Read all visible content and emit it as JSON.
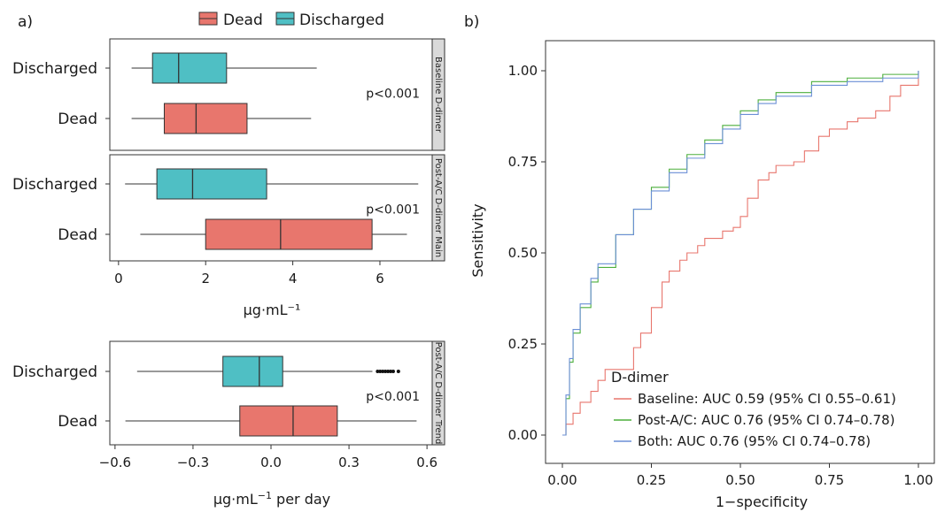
{
  "panel_a": {
    "label": "a)",
    "legend": {
      "items": [
        {
          "name": "Dead",
          "color": "#E8766D"
        },
        {
          "name": "Discharged",
          "color": "#4FBFC4"
        }
      ]
    },
    "top_xlabel": "μg·mL⁻¹",
    "bottom_xlabel_main": "μg·mL",
    "bottom_xlabel_sup": "−1",
    "bottom_xlabel_tail": " per day",
    "top_xticks": [
      "0",
      "2",
      "4",
      "6"
    ],
    "bottom_xticks": [
      "−0.6",
      "−0.3",
      "0.0",
      "0.3",
      "0.6"
    ]
  },
  "panel_b": {
    "label": "b)",
    "xlabel": "1−specificity",
    "ylabel": "Sensitivity",
    "xticks": [
      "0.00",
      "0.25",
      "0.50",
      "0.75",
      "1.00"
    ],
    "yticks": [
      "0.00",
      "0.25",
      "0.50",
      "0.75",
      "1.00"
    ],
    "legend_title": "D-dimer",
    "legend_items": [
      {
        "label": "Baseline: AUC 0.59 (95% CI 0.55–0.61)",
        "color": "#E8766D"
      },
      {
        "label": "Post-A/C: AUC 0.76 (95% CI 0.74–0.78)",
        "color": "#4CAF3C"
      },
      {
        "label": "Both: AUC 0.76 (95% CI 0.74–0.78)",
        "color": "#6B8FD6"
      }
    ]
  },
  "chart_data": [
    {
      "type": "boxplot",
      "panel": "a",
      "facet": "Baseline D-dimer",
      "xlim": [
        -0.2,
        7.2
      ],
      "categories": [
        "Discharged",
        "Dead"
      ],
      "boxes": [
        {
          "group": "Discharged",
          "color": "#4FBFC4",
          "whisker_low": 0.3,
          "q1": 0.78,
          "median": 1.38,
          "q3": 2.48,
          "whisker_high": 4.55
        },
        {
          "group": "Dead",
          "color": "#E8766D",
          "whisker_low": 0.3,
          "q1": 1.05,
          "median": 1.78,
          "q3": 2.95,
          "whisker_high": 4.42
        }
      ],
      "annotation": "p<0.001"
    },
    {
      "type": "boxplot",
      "panel": "a",
      "facet": "Post-A/C D-dimer Main",
      "xlim": [
        -0.2,
        7.2
      ],
      "categories": [
        "Discharged",
        "Dead"
      ],
      "boxes": [
        {
          "group": "Discharged",
          "color": "#4FBFC4",
          "whisker_low": 0.15,
          "q1": 0.88,
          "median": 1.7,
          "q3": 3.4,
          "whisker_high": 6.88
        },
        {
          "group": "Dead",
          "color": "#E8766D",
          "whisker_low": 0.5,
          "q1": 2.0,
          "median": 3.72,
          "q3": 5.82,
          "whisker_high": 6.62
        }
      ],
      "annotation": "p<0.001"
    },
    {
      "type": "boxplot",
      "panel": "a",
      "facet": "Post-A/C D-dimer Trend",
      "xlim": [
        -0.62,
        0.62
      ],
      "categories": [
        "Discharged",
        "Dead"
      ],
      "boxes": [
        {
          "group": "Discharged",
          "color": "#4FBFC4",
          "whisker_low": -0.515,
          "q1": -0.185,
          "median": -0.045,
          "q3": 0.045,
          "whisker_high": 0.39,
          "outliers": [
            0.41,
            0.42,
            0.43,
            0.44,
            0.45,
            0.46,
            0.47,
            0.49
          ]
        },
        {
          "group": "Dead",
          "color": "#E8766D",
          "whisker_low": -0.56,
          "q1": -0.12,
          "median": 0.085,
          "q3": 0.255,
          "whisker_high": 0.56
        }
      ],
      "annotation": "p<0.001"
    },
    {
      "type": "line",
      "panel": "b",
      "xlim": [
        0,
        1
      ],
      "ylim": [
        0,
        1
      ],
      "series": [
        {
          "name": "Baseline: AUC 0.59 (95% CI 0.55–0.61)",
          "color": "#E8766D",
          "x": [
            0.0,
            0.01,
            0.03,
            0.05,
            0.08,
            0.1,
            0.12,
            0.15,
            0.2,
            0.22,
            0.25,
            0.28,
            0.3,
            0.33,
            0.35,
            0.38,
            0.4,
            0.45,
            0.48,
            0.5,
            0.52,
            0.55,
            0.58,
            0.6,
            0.65,
            0.68,
            0.72,
            0.75,
            0.8,
            0.83,
            0.88,
            0.92,
            0.95,
            1.0
          ],
          "y": [
            0.0,
            0.03,
            0.06,
            0.09,
            0.12,
            0.15,
            0.18,
            0.18,
            0.24,
            0.28,
            0.35,
            0.42,
            0.45,
            0.48,
            0.5,
            0.52,
            0.54,
            0.56,
            0.57,
            0.6,
            0.65,
            0.7,
            0.72,
            0.74,
            0.75,
            0.78,
            0.82,
            0.84,
            0.86,
            0.87,
            0.89,
            0.93,
            0.96,
            1.0
          ]
        },
        {
          "name": "Post-A/C: AUC 0.76 (95% CI 0.74–0.78)",
          "color": "#4CAF3C",
          "x": [
            0.0,
            0.01,
            0.02,
            0.03,
            0.05,
            0.08,
            0.1,
            0.15,
            0.2,
            0.25,
            0.3,
            0.35,
            0.4,
            0.45,
            0.5,
            0.55,
            0.6,
            0.7,
            0.8,
            0.9,
            1.0
          ],
          "y": [
            0.0,
            0.1,
            0.2,
            0.28,
            0.35,
            0.42,
            0.46,
            0.55,
            0.62,
            0.68,
            0.73,
            0.77,
            0.81,
            0.85,
            0.89,
            0.92,
            0.94,
            0.97,
            0.98,
            0.99,
            1.0
          ]
        },
        {
          "name": "Both: AUC 0.76 (95% CI 0.74–0.78)",
          "color": "#6B8FD6",
          "x": [
            0.0,
            0.01,
            0.02,
            0.03,
            0.05,
            0.08,
            0.1,
            0.15,
            0.2,
            0.25,
            0.3,
            0.35,
            0.4,
            0.45,
            0.5,
            0.55,
            0.6,
            0.7,
            0.8,
            0.9,
            1.0
          ],
          "y": [
            0.0,
            0.11,
            0.21,
            0.29,
            0.36,
            0.43,
            0.47,
            0.55,
            0.62,
            0.67,
            0.72,
            0.76,
            0.8,
            0.84,
            0.88,
            0.91,
            0.93,
            0.96,
            0.97,
            0.98,
            1.0
          ]
        }
      ]
    }
  ]
}
